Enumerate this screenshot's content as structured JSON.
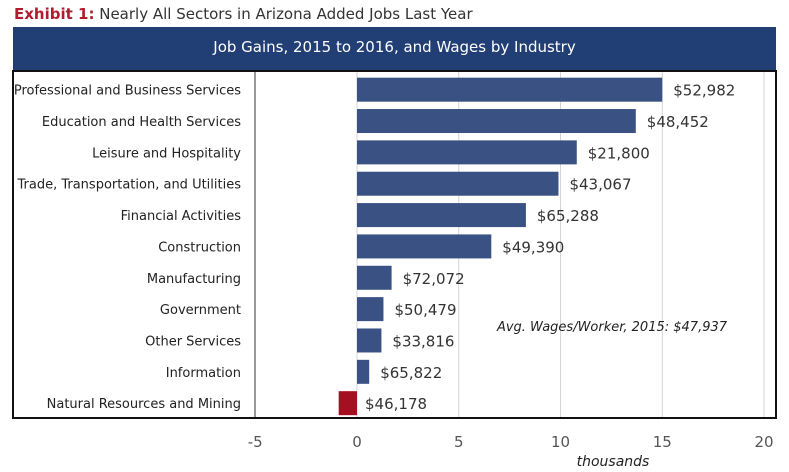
{
  "exhibit": {
    "label": "Exhibit 1:",
    "title": "Nearly All Sectors in Arizona Added Jobs Last Year"
  },
  "chart_data": {
    "type": "bar",
    "orientation": "horizontal",
    "title": "Job Gains, 2015 to 2016, and Wages by Industry",
    "xlabel": "thousands",
    "xlim": [
      -5,
      20
    ],
    "xticks": [
      "-5",
      "0",
      "5",
      "10",
      "15",
      "20"
    ],
    "grid": true,
    "categories": [
      "Professional and Business Services",
      "Education and Health Services",
      "Leisure and Hospitality",
      "Trade, Transportation, and Utilities",
      "Financial Activities",
      "Construction",
      "Manufacturing",
      "Government",
      "Other Services",
      "Information",
      "Natural Resources and Mining"
    ],
    "values": [
      15.0,
      13.7,
      10.8,
      9.9,
      8.3,
      6.6,
      1.7,
      1.3,
      1.2,
      0.6,
      -0.9
    ],
    "data_labels": [
      "$52,982",
      "$48,452",
      "$21,800",
      "$43,067",
      "$65,288",
      "$49,390",
      "$72,072",
      "$50,479",
      "$33,816",
      "$65,822",
      "$46,178"
    ],
    "annotation": "Avg. Wages/Worker, 2015: $47,937",
    "colors": {
      "positive": "#3a5283",
      "negative": "#a50f22",
      "header": "#213f74",
      "exhibit_label": "#b01c2e"
    }
  }
}
